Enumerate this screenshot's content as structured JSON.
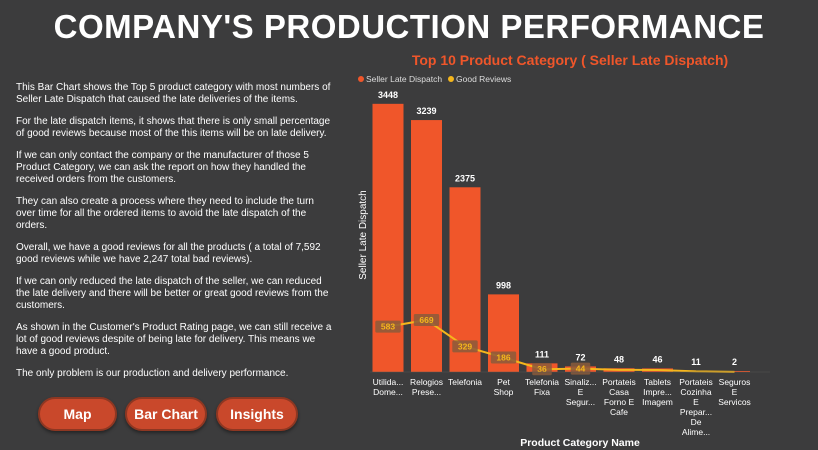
{
  "page": {
    "title": "COMPANY'S PRODUCTION PERFORMANCE",
    "description": [
      "This Bar Chart shows the Top  5 product category with most numbers of Seller Late Dispatch that caused the late deliveries of the items.",
      "For the late dispatch items, it shows that there is only small percentage of good reviews because most of the this items will be on late delivery.",
      "If we can only contact the company or the manufacturer of those 5 Product Category, we can ask the report on how they handled the received orders from the customers.",
      "They can also create a process where they need to include the turn over time for all the ordered items to avoid the late dispatch of the orders.",
      "Overall, we have a good reviews for all the products ( a total of 7,592 good reviews while we have 2,247 total bad reviews).",
      "If we can only reduced the late dispatch of the seller, we can reduced the late delivery and there will be better or great good reviews from the customers.",
      "As shown in the Customer's Product Rating page, we can still receive a lot of good reviews despite of being late for delivery. This means we have a good product.",
      "The only problem is our production and delivery performance."
    ]
  },
  "nav": {
    "map_label": "Map",
    "bar_chart_label": "Bar Chart",
    "insights_label": "Insights"
  },
  "colors": {
    "background": "#3c3c3d",
    "bar": "#f0562a",
    "line": "#f5b61c",
    "title_accent": "#f0562a",
    "button": "#c9482b"
  },
  "chart_data": {
    "type": "bar",
    "title": "Top 10 Product Category ( Seller Late Dispatch)",
    "xlabel": "Product Category Name",
    "ylabel": "Seller Late Dispatch",
    "ylim": [
      0,
      3600
    ],
    "legend": [
      "Seller Late Dispatch",
      "Good Reviews"
    ],
    "categories": [
      [
        "Utilida...",
        "Dome..."
      ],
      [
        "Relogios",
        "Prese..."
      ],
      [
        "Telefonia"
      ],
      [
        "Pet",
        "Shop"
      ],
      [
        "Telefonia",
        "Fixa"
      ],
      [
        "Sinaliz...",
        "E",
        "Segur..."
      ],
      [
        "Portateis",
        "Casa",
        "Forno E",
        "Cafe"
      ],
      [
        "Tablets",
        "Impre...",
        "Imagem"
      ],
      [
        "Portateis",
        "Cozinha",
        "E",
        "Prepar...",
        "De",
        "Alime..."
      ],
      [
        "Seguros",
        "E",
        "Servicos"
      ]
    ],
    "series": [
      {
        "name": "Seller Late Dispatch",
        "kind": "bar",
        "values": [
          3448,
          3239,
          2375,
          998,
          111,
          72,
          48,
          46,
          11,
          2
        ],
        "labels": [
          "3448",
          "3239",
          "2375",
          "998",
          "111",
          "72",
          "48",
          "46",
          "11",
          "2"
        ]
      },
      {
        "name": "Good Reviews",
        "kind": "line",
        "values": [
          583,
          669,
          329,
          186,
          36,
          44,
          27,
          26,
          8,
          1
        ],
        "labels": [
          "583",
          "669",
          "329",
          "186",
          "36",
          "44",
          "",
          "",
          "",
          ""
        ]
      }
    ]
  }
}
